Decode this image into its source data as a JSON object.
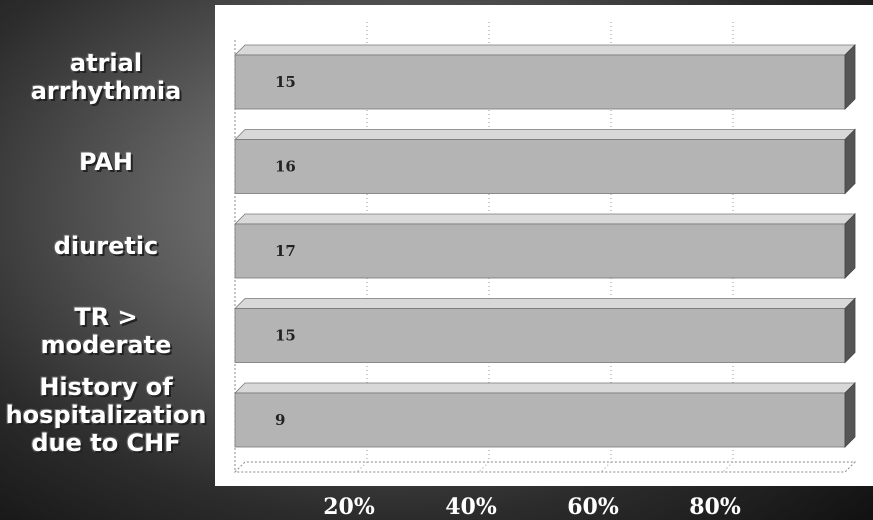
{
  "chart_data": {
    "type": "bar",
    "orientation": "horizontal",
    "stacked_100_percent": true,
    "categories": [
      "atrial\narrhythmia",
      "PAH",
      "diuretic",
      "TR >\nmoderate",
      "History of\nhospitalization\ndue to CHF"
    ],
    "series": [
      {
        "values": [
          15,
          16,
          17,
          15,
          9
        ]
      }
    ],
    "x_ticks": [
      "20%",
      "40%",
      "60%",
      "80%"
    ],
    "xlim": [
      0,
      100
    ],
    "grid": true,
    "legend": "none",
    "colors": {
      "bar": "#b4b4b4",
      "bar_top": "#d8d8d8",
      "bar_side": "#555555",
      "plot_bg": "#ffffff"
    }
  }
}
